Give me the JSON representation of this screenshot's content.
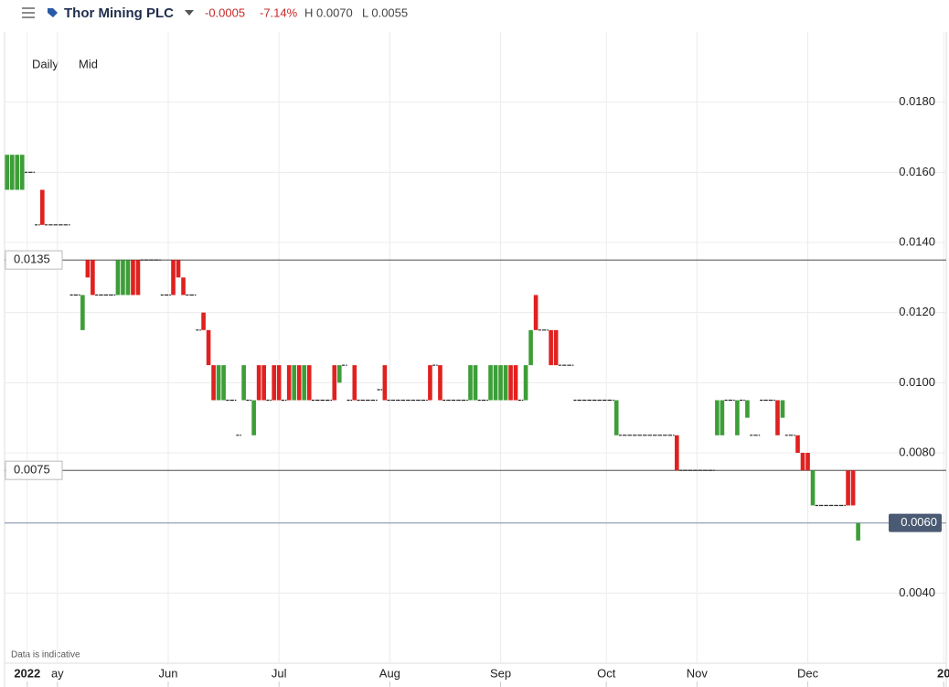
{
  "header": {
    "title": "Thor Mining PLC",
    "change": "-0.0005",
    "change_pct": "-7.14%",
    "high": "H 0.0070",
    "low": "L 0.0055"
  },
  "chart_data": {
    "type": "candlestick",
    "interval": "Daily",
    "price_type": "Mid",
    "note": "Data is indicative",
    "categories": [
      null,
      null,
      null,
      null,
      "2022",
      null,
      null,
      null,
      null,
      null,
      "ay",
      null,
      null,
      null,
      null,
      null,
      null,
      null,
      null,
      null,
      null,
      null,
      null,
      null,
      null,
      null,
      null,
      null,
      null,
      null,
      null,
      null,
      "Jun",
      null,
      null,
      null,
      null,
      null,
      null,
      null,
      null,
      null,
      null,
      null,
      null,
      null,
      null,
      null,
      null,
      null,
      null,
      null,
      null,
      null,
      "Jul",
      null,
      null,
      null,
      null,
      null,
      null,
      null,
      null,
      null,
      null,
      null,
      null,
      null,
      null,
      null,
      null,
      null,
      null,
      null,
      null,
      null,
      "Aug",
      null,
      null,
      null,
      null,
      null,
      null,
      null,
      null,
      null,
      null,
      null,
      null,
      null,
      null,
      null,
      null,
      null,
      null,
      null,
      null,
      null,
      "Sep",
      null,
      null,
      null,
      null,
      null,
      null,
      null,
      null,
      null,
      null,
      null,
      null,
      null,
      null,
      null,
      null,
      null,
      null,
      null,
      null,
      "Oct",
      null,
      null,
      null,
      null,
      null,
      null,
      null,
      null,
      null,
      null,
      null,
      null,
      null,
      null,
      null,
      null,
      null,
      "Nov",
      null,
      null,
      null,
      null,
      null,
      null,
      null,
      null,
      null,
      null,
      null,
      null,
      null,
      null,
      null,
      null,
      null,
      null,
      null,
      null,
      null,
      "Dec",
      null,
      null,
      null,
      null,
      null,
      null,
      null,
      null,
      null,
      null,
      null,
      null,
      null,
      null,
      null,
      null,
      null,
      null,
      null,
      null,
      null,
      null,
      null,
      null,
      null,
      null,
      "20"
    ],
    "open": [
      0.0155,
      0.0155,
      0.0155,
      0.0155,
      0.016,
      0.016,
      0.0145,
      0.0155,
      0.0145,
      0.0145,
      0.0145,
      0.0145,
      0.0145,
      0.0125,
      0.0125,
      0.0115,
      0.0135,
      0.0135,
      0.0125,
      0.0125,
      0.0125,
      0.0125,
      0.0125,
      0.0125,
      0.0125,
      0.0135,
      0.0135,
      0.0135,
      0.0135,
      0.0135,
      0.0135,
      0.0125,
      0.0125,
      0.0135,
      0.0135,
      0.013,
      0.0125,
      0.0125,
      0.0115,
      0.012,
      0.0115,
      0.0105,
      0.0095,
      0.0095,
      0.0095,
      0.0095,
      0.0085,
      0.0095,
      0.0095,
      0.0085,
      0.0105,
      0.0105,
      0.0095,
      0.0105,
      0.0105,
      0.0095,
      0.0105,
      0.0095,
      0.0105,
      0.0095,
      0.0105,
      0.0095,
      0.0095,
      0.0095,
      0.0095,
      0.0105,
      0.01,
      0.0105,
      0.0095,
      0.0105,
      0.0095,
      0.0095,
      0.0095,
      0.0095,
      0.0098,
      0.0105,
      0.0095,
      0.0095,
      0.0095,
      0.0095,
      0.0095,
      0.0095,
      0.0095,
      0.0095,
      0.0105,
      0.0105,
      0.0105,
      0.0095,
      0.0095,
      0.0095,
      0.0095,
      0.0095,
      0.0095,
      0.0095,
      0.0095,
      0.0095,
      0.0095,
      0.0095,
      0.0095,
      0.0095,
      0.0105,
      0.0105,
      0.0095,
      0.0095,
      0.0105,
      0.0125,
      0.0115,
      0.0115,
      0.0115,
      0.0115,
      0.0105,
      0.0105,
      0.0105,
      0.0095,
      0.0095,
      0.0095,
      0.0095,
      0.0095,
      0.0095,
      0.0095,
      0.0095,
      0.0085,
      0.0085,
      0.0085,
      0.0085,
      0.0085,
      0.0085,
      0.0085,
      0.0085,
      0.0085,
      0.0085,
      0.0085,
      0.0085,
      0.0085,
      0.0075,
      0.0075,
      0.0075,
      0.0075,
      0.0075,
      0.0075,
      0.0075,
      0.0085,
      0.0085,
      0.0095,
      0.0095,
      0.0085,
      0.0095,
      0.009,
      0.0085,
      0.0085,
      0.0095,
      0.0095,
      0.0095,
      0.0095,
      0.009,
      0.0085,
      0.0085,
      0.0085,
      0.008,
      0.008,
      0.0065,
      0.0065,
      0.0065,
      0.0065,
      0.0065,
      0.0065,
      0.0065,
      0.0075,
      0.0075,
      0.0055,
      null,
      null,
      null,
      null,
      null,
      null,
      null,
      null,
      null,
      null,
      null,
      null,
      null,
      null,
      null,
      null,
      null
    ],
    "close": [
      0.0165,
      0.0165,
      0.0165,
      0.0165,
      0.016,
      0.016,
      0.0145,
      0.0145,
      0.0145,
      0.0145,
      0.0145,
      0.0145,
      0.0145,
      0.0125,
      0.0125,
      0.0125,
      0.013,
      0.0125,
      0.0125,
      0.0125,
      0.0125,
      0.0125,
      0.0135,
      0.0135,
      0.0135,
      0.0125,
      0.0125,
      0.0135,
      0.0135,
      0.0135,
      0.0135,
      0.0125,
      0.0125,
      0.0125,
      0.013,
      0.0125,
      0.0125,
      0.0125,
      0.0115,
      0.0115,
      0.0105,
      0.0095,
      0.0105,
      0.0105,
      0.0095,
      0.0095,
      0.0085,
      0.0105,
      0.0095,
      0.0095,
      0.0095,
      0.0095,
      0.0095,
      0.0095,
      0.0095,
      0.0095,
      0.0095,
      0.0105,
      0.0095,
      0.0105,
      0.0095,
      0.0095,
      0.0095,
      0.0095,
      0.0095,
      0.0095,
      0.0105,
      0.0105,
      0.0095,
      0.0095,
      0.0095,
      0.0095,
      0.0095,
      0.0095,
      0.0098,
      0.0095,
      0.0095,
      0.0095,
      0.0095,
      0.0095,
      0.0095,
      0.0095,
      0.0095,
      0.0095,
      0.0095,
      0.0105,
      0.0095,
      0.0095,
      0.0095,
      0.0095,
      0.0095,
      0.0095,
      0.0105,
      0.0105,
      0.0095,
      0.0095,
      0.0105,
      0.0105,
      0.0105,
      0.0105,
      0.0095,
      0.0095,
      0.0095,
      0.0105,
      0.0115,
      0.0115,
      0.0115,
      0.0115,
      0.0105,
      0.0105,
      0.0105,
      0.0105,
      0.0105,
      0.0095,
      0.0095,
      0.0095,
      0.0095,
      0.0095,
      0.0095,
      0.0095,
      0.0095,
      0.0095,
      0.0085,
      0.0085,
      0.0085,
      0.0085,
      0.0085,
      0.0085,
      0.0085,
      0.0085,
      0.0085,
      0.0085,
      0.0085,
      0.0075,
      0.0075,
      0.0075,
      0.0075,
      0.0075,
      0.0075,
      0.0075,
      0.0075,
      0.0095,
      0.0095,
      0.0095,
      0.0095,
      0.0095,
      0.0095,
      0.0095,
      0.0085,
      0.0085,
      0.0095,
      0.0095,
      0.0095,
      0.0085,
      0.0095,
      0.0085,
      0.0085,
      0.008,
      0.0075,
      0.0075,
      0.0075,
      0.0065,
      0.0065,
      0.0065,
      0.0065,
      0.0065,
      0.0065,
      0.0065,
      0.0065,
      0.006,
      null,
      null,
      null,
      null,
      null,
      null,
      null,
      null,
      null,
      null,
      null,
      null,
      null,
      null,
      null,
      null,
      null
    ],
    "up_color": "#3d9e38",
    "down_color": "#e0211f",
    "flat_color": "#222222",
    "ylim": [
      0.002,
      0.02
    ],
    "yticks": [
      {
        "value": 0.004,
        "label": "0.0040"
      },
      {
        "value": 0.006,
        "label": "0.0060"
      },
      {
        "value": 0.008,
        "label": "0.0080"
      },
      {
        "value": 0.01,
        "label": "0.0100"
      },
      {
        "value": 0.012,
        "label": "0.0120"
      },
      {
        "value": 0.014,
        "label": "0.0140"
      },
      {
        "value": 0.016,
        "label": "0.0160"
      },
      {
        "value": 0.018,
        "label": "0.0180"
      }
    ],
    "grid": true,
    "ref_lines": [
      {
        "value": 0.0135,
        "label": "0.0135"
      },
      {
        "value": 0.0075,
        "label": "0.0075"
      }
    ],
    "last_price": {
      "value": 0.006,
      "label": "0.0060"
    }
  }
}
